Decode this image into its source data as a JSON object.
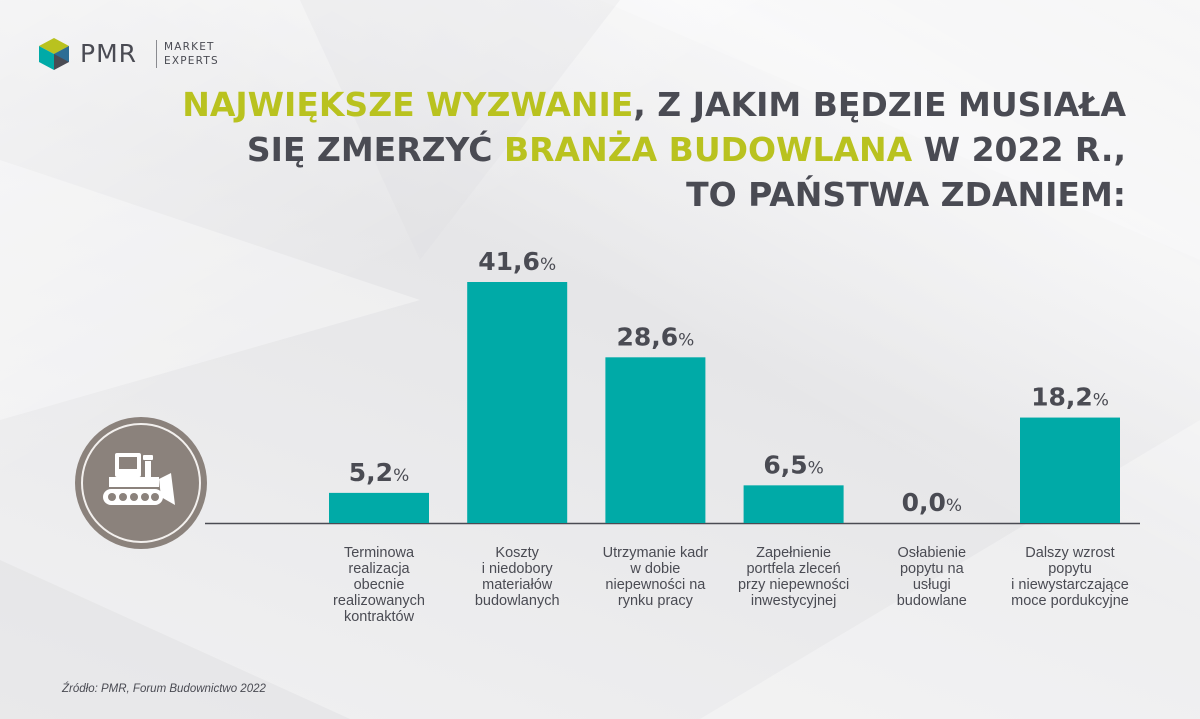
{
  "brand": {
    "name": "PMR",
    "tagline_line1": "MARKET",
    "tagline_line2": "EXPERTS"
  },
  "title": {
    "line1_highlight": "NAJWIĘKSZE WYZWANIE",
    "line1_rest": ", Z JAKIM BĘDZIE MUSIAŁA",
    "line2_start": "SIĘ ZMERZYĆ ",
    "line2_highlight": "BRANŻA BUDOWLANA",
    "line2_rest": " W 2022 R.,",
    "line3": "TO PAŃSTWA ZDANIEM:"
  },
  "icon": "bulldozer-icon",
  "colors": {
    "bar": "#00aaa7",
    "accent": "#b9c21f",
    "text": "#4a4b53",
    "icon_circle": "#8b827c"
  },
  "chart_data": {
    "type": "bar",
    "unit": "%",
    "categories": [
      [
        "Terminowa",
        "realizacja",
        "obecnie",
        "realizowanych",
        "kontraktów"
      ],
      [
        "Koszty",
        "i niedobory",
        "materiałów",
        "budowlanych"
      ],
      [
        "Utrzymanie kadr",
        "w dobie",
        "niepewności na",
        "rynku pracy"
      ],
      [
        "Zapełnienie",
        "portfela zleceń",
        "przy niepewności",
        "inwestycyjnej"
      ],
      [
        "Osłabienie",
        "popytu na",
        "usługi",
        "budowlane"
      ],
      [
        "Dalszy wzrost",
        "popytu",
        "i niewystarczające",
        "moce pordukcyjne"
      ]
    ],
    "values": [
      5.2,
      41.6,
      28.6,
      6.5,
      0.0,
      18.2
    ],
    "value_labels": [
      "5,2",
      "41,6",
      "28,6",
      "6,5",
      "0,0",
      "18,2"
    ],
    "ylim": [
      0,
      41.6
    ]
  },
  "source": "Źródło: PMR, Forum Budownictwo 2022"
}
